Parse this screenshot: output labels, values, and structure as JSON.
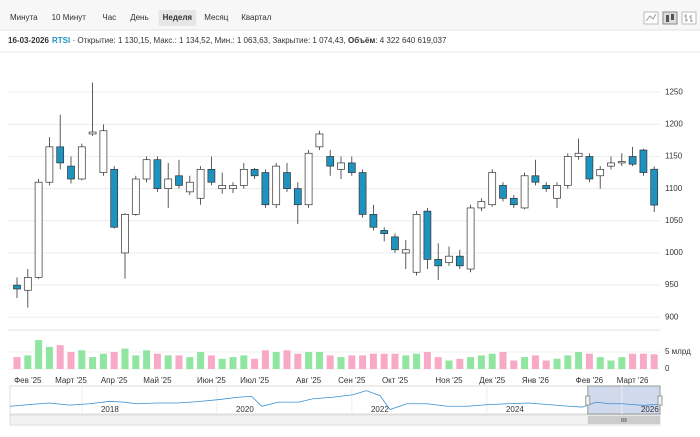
{
  "toolbar": {
    "tabs": [
      "Минута",
      "10 Минут",
      "Час",
      "День",
      "Неделя",
      "Месяц",
      "Квартал"
    ],
    "active": 4
  },
  "info": {
    "date": "16-03-2026",
    "ticker": "RTSI",
    "text": "· Открытие: 1 130,15, Макс.: 1 134,52, Мин.: 1 063,63, Закрытие: 1 074,43,",
    "volume_label": "Объём",
    "volume_text": ": 4 322 640 619,037"
  },
  "chart_data": [
    {
      "type": "candlestick",
      "categories": [
        null,
        "Фев '25",
        null,
        null,
        null,
        "Март '25",
        null,
        null,
        null,
        "Апр '25",
        null,
        null,
        null,
        "Май '25",
        null,
        null,
        null,
        null,
        "Июн '25",
        null,
        null,
        null,
        "Июл '25",
        null,
        null,
        null,
        null,
        "Авг '25",
        null,
        null,
        null,
        "Сен '25",
        null,
        null,
        null,
        "Окт '25",
        null,
        null,
        null,
        null,
        "Ноя '25",
        null,
        null,
        null,
        "Дек '25",
        null,
        null,
        null,
        "Янв '26",
        null,
        null,
        null,
        null,
        "Фев '26",
        null,
        null,
        null,
        "Март '26",
        null,
        null
      ],
      "open": [
        950,
        942,
        962,
        1110,
        1165,
        1135,
        1115,
        1185,
        1125,
        1130,
        1000,
        1060,
        1115,
        1145,
        1100,
        1120,
        1095,
        1085,
        1130,
        1100,
        1100,
        1105,
        1130,
        1125,
        1075,
        1125,
        1100,
        1075,
        1165,
        1150,
        1130,
        1140,
        1125,
        1060,
        1035,
        1025,
        1000,
        970,
        1065,
        990,
        985,
        995,
        975,
        1070,
        1075,
        1105,
        1085,
        1070,
        1120,
        1105,
        1085,
        1105,
        1150,
        1150,
        1120,
        1135,
        1140,
        1150,
        1160,
        1130.15
      ],
      "high": [
        962,
        975,
        1115,
        1180,
        1215,
        1150,
        1170,
        1265,
        1200,
        1135,
        1062,
        1120,
        1150,
        1150,
        1140,
        1145,
        1120,
        1135,
        1150,
        1125,
        1110,
        1140,
        1132,
        1130,
        1140,
        1140,
        1110,
        1160,
        1190,
        1160,
        1150,
        1150,
        1130,
        1075,
        1040,
        1030,
        1020,
        1065,
        1070,
        1015,
        1010,
        1005,
        1075,
        1085,
        1130,
        1110,
        1090,
        1125,
        1145,
        1110,
        1110,
        1155,
        1178,
        1155,
        1135,
        1150,
        1155,
        1165,
        1162,
        1134.52
      ],
      "low": [
        930,
        915,
        960,
        1105,
        1130,
        1108,
        1113,
        1182,
        1120,
        1038,
        960,
        1058,
        1110,
        1095,
        1070,
        1100,
        1090,
        1075,
        1105,
        1092,
        1093,
        1100,
        1115,
        1070,
        1070,
        1095,
        1045,
        1070,
        1160,
        1120,
        1115,
        1120,
        1055,
        1035,
        1018,
        1000,
        975,
        965,
        975,
        958,
        980,
        975,
        970,
        1065,
        1072,
        1080,
        1070,
        1068,
        1105,
        1095,
        1070,
        1100,
        1145,
        1110,
        1100,
        1130,
        1135,
        1135,
        1120,
        1063.63
      ],
      "close": [
        944,
        962,
        1110,
        1165,
        1140,
        1115,
        1165,
        1188,
        1190,
        1040,
        1060,
        1115,
        1145,
        1100,
        1115,
        1105,
        1110,
        1130,
        1110,
        1105,
        1105,
        1130,
        1120,
        1075,
        1135,
        1100,
        1075,
        1155,
        1185,
        1135,
        1140,
        1125,
        1060,
        1040,
        1030,
        1005,
        1005,
        1060,
        990,
        980,
        995,
        980,
        1070,
        1080,
        1125,
        1085,
        1075,
        1120,
        1110,
        1100,
        1105,
        1150,
        1155,
        1115,
        1130,
        1140,
        1142,
        1138,
        1125,
        1074.43
      ],
      "up_color": "#ffffff",
      "down_color": "#1f93c0",
      "ylim": [
        888,
        1300
      ],
      "yticks": [
        900,
        950,
        1000,
        1050,
        1100,
        1150,
        1200,
        1250
      ],
      "grid": true,
      "volume": {
        "values": [
          3.5,
          4.0,
          8.5,
          6.5,
          7.0,
          5.0,
          5.5,
          3.5,
          4.5,
          5.0,
          6.0,
          4.0,
          5.5,
          4.5,
          4.0,
          4.0,
          3.5,
          5.0,
          4.0,
          3.0,
          3.5,
          4.0,
          3.0,
          5.5,
          5.0,
          5.5,
          4.5,
          5.0,
          5.0,
          4.0,
          3.5,
          4.0,
          4.0,
          4.5,
          4.5,
          4.5,
          4.0,
          4.5,
          5.0,
          3.5,
          2.5,
          3.0,
          3.5,
          4.0,
          4.5,
          5.0,
          2.5,
          3.5,
          4.0,
          2.5,
          3.0,
          4.0,
          5.0,
          4.5,
          3.5,
          2.5,
          3.5,
          4.5,
          4.5,
          4.322640619037
        ],
        "up_color": "#90e6a0",
        "down_color": "#f7a9c6",
        "ylim": [
          0,
          10
        ],
        "yticks": [
          0,
          {
            "value": 5,
            "label": "5 млрд"
          }
        ]
      }
    },
    {
      "type": "line",
      "x": [
        2016.52,
        2016.8,
        2017.1,
        2017.4,
        2017.7,
        2018.0,
        2018.2,
        2018.4,
        2018.7,
        2019.0,
        2019.3,
        2019.6,
        2019.9,
        2020.1,
        2020.25,
        2020.5,
        2020.8,
        2021.0,
        2021.3,
        2021.6,
        2021.8,
        2022.0,
        2022.15,
        2022.4,
        2022.7,
        2023.0,
        2023.3,
        2023.6,
        2023.9,
        2024.2,
        2024.5,
        2024.8,
        2025.0,
        2025.2,
        2025.4,
        2025.6,
        2025.9,
        2026.15
      ],
      "values": [
        950,
        1050,
        1150,
        1020,
        1100,
        1250,
        1200,
        1100,
        1150,
        1150,
        1230,
        1350,
        1500,
        1550,
        950,
        1200,
        1200,
        1400,
        1500,
        1650,
        1900,
        1600,
        750,
        1100,
        1100,
        950,
        950,
        1050,
        1100,
        1150,
        1050,
        950,
        900,
        1200,
        1100,
        1100,
        1000,
        1074
      ],
      "color": "#3a8fd0",
      "xlim": [
        2016.52,
        2026.15
      ],
      "xticks": [
        2018,
        2020,
        2022,
        2024,
        2026
      ],
      "ylim": [
        600,
        2000
      ],
      "selected_range": [
        2025.08,
        2026.15
      ]
    }
  ]
}
